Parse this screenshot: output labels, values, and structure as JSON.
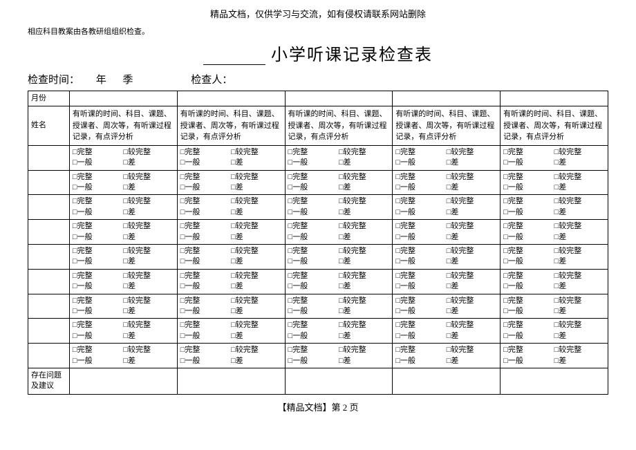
{
  "header_note": "精品文档，仅供学习与交流，如有侵权请联系网站删除",
  "sub_note": "相应科目教案由各教研组组织检查。",
  "title": "小学听课记录检查表",
  "info": {
    "check_time_label": "检查时间：",
    "year_label": "年",
    "season_label": "季",
    "checker_label": "检查人："
  },
  "table": {
    "month_label": "月份",
    "name_label": "姓名",
    "column_desc": "有听课的时间、科目、课题、授课者、周次等，有听课过程记录，有点评分析",
    "checkbox_options": {
      "complete": "□完整",
      "mostly_complete": "□较完整",
      "average": "□一般",
      "poor": "□差"
    },
    "issues_label": "存在问题及建议",
    "num_data_cols": 5,
    "num_check_rows": 9
  },
  "footer": "【精品文档】第 2 页"
}
